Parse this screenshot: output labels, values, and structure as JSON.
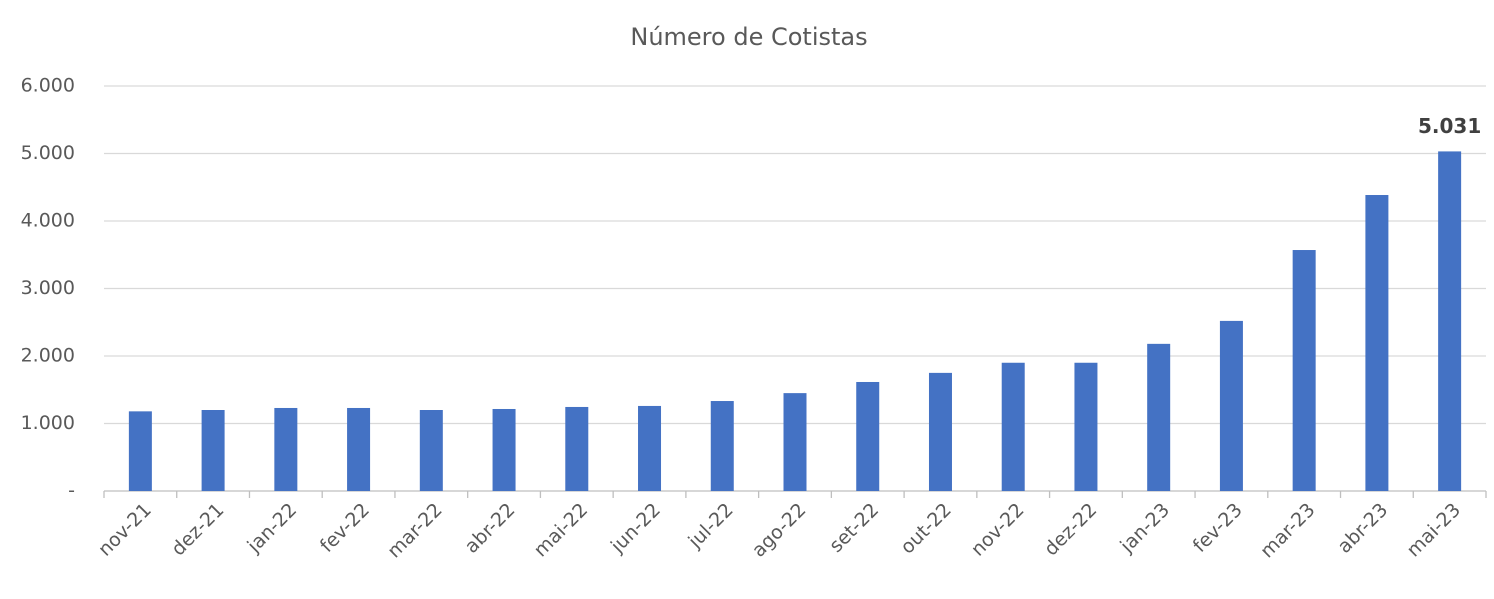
{
  "chart_data": {
    "type": "bar",
    "title": "Número de Cotistas",
    "categories": [
      "nov-21",
      "dez-21",
      "jan-22",
      "fev-22",
      "mar-22",
      "abr-22",
      "mai-22",
      "jun-22",
      "jul-22",
      "ago-22",
      "set-22",
      "out-22",
      "nov-22",
      "dez-22",
      "jan-23",
      "fev-23",
      "mar-23",
      "abr-23",
      "mai-23"
    ],
    "values": [
      1180,
      1200,
      1230,
      1230,
      1200,
      1215,
      1245,
      1260,
      1333,
      1450,
      1615,
      1750,
      1900,
      1900,
      2180,
      2520,
      3570,
      4385,
      5031
    ],
    "value_labels": [
      null,
      null,
      null,
      null,
      null,
      null,
      null,
      null,
      null,
      null,
      null,
      null,
      null,
      null,
      null,
      null,
      null,
      null,
      "5.031"
    ],
    "color": "#4472c4",
    "ylim": [
      0,
      6000
    ],
    "yticks": [
      {
        "value": 0,
        "label": "-"
      },
      {
        "value": 1000,
        "label": "1.000"
      },
      {
        "value": 2000,
        "label": "2.000"
      },
      {
        "value": 3000,
        "label": "3.000"
      },
      {
        "value": 4000,
        "label": "4.000"
      },
      {
        "value": 5000,
        "label": "5.000"
      },
      {
        "value": 6000,
        "label": "6.000"
      }
    ],
    "grid": true
  }
}
